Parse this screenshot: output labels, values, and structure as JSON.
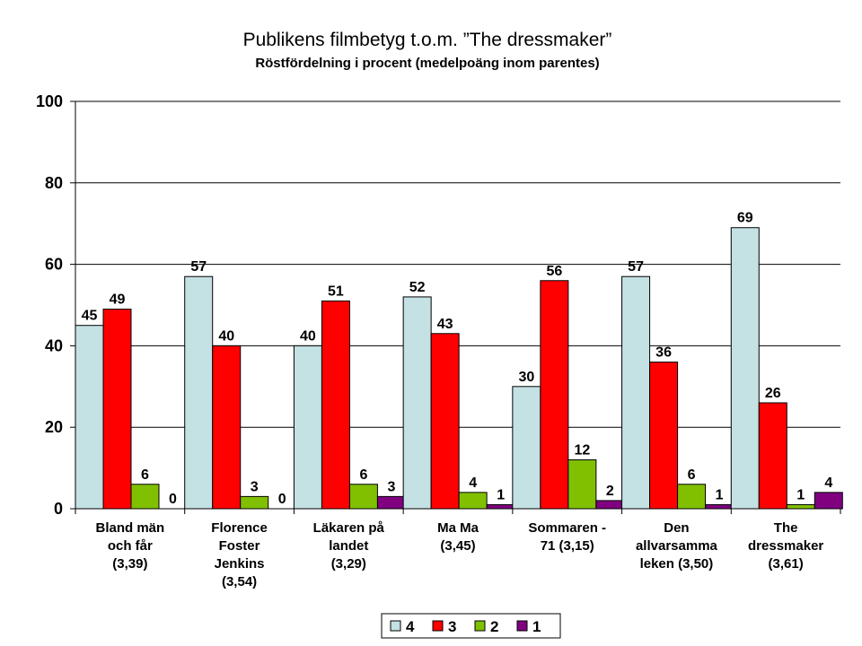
{
  "chart_data": {
    "type": "bar",
    "title": "Publikens filmbetyg t.o.m. ”The dressmaker”",
    "subtitle": "Röstfördelning i procent (medelpoäng inom parentes)",
    "categories": [
      [
        "Bland män",
        "och får",
        "(3,39)"
      ],
      [
        "Florence",
        "Foster",
        "Jenkins",
        "(3,54)"
      ],
      [
        "Läkaren på",
        "landet",
        "(3,29)"
      ],
      [
        "Ma Ma",
        "(3,45)"
      ],
      [
        "Sommaren -",
        "71 (3,15)"
      ],
      [
        "Den",
        "allvarsamma",
        "leken (3,50)"
      ],
      [
        "The",
        "dressmaker",
        "(3,61)"
      ]
    ],
    "series": [
      {
        "name": "4",
        "color": "#c4e1e4",
        "values": [
          45,
          57,
          40,
          52,
          30,
          57,
          69
        ]
      },
      {
        "name": "3",
        "color": "#ff0000",
        "values": [
          49,
          40,
          51,
          43,
          56,
          36,
          26
        ]
      },
      {
        "name": "2",
        "color": "#80c000",
        "values": [
          6,
          3,
          6,
          4,
          12,
          6,
          1
        ]
      },
      {
        "name": "1",
        "color": "#800080",
        "values": [
          0,
          0,
          3,
          1,
          2,
          1,
          4
        ]
      }
    ],
    "yticks": [
      "0",
      "20",
      "40",
      "60",
      "80",
      "100"
    ],
    "ylim": [
      0,
      100
    ],
    "grid": true,
    "legend": "bottom"
  }
}
